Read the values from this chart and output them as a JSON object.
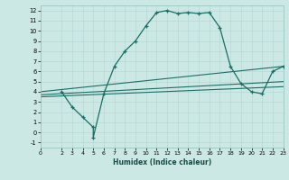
{
  "xlabel": "Humidex (Indice chaleur)",
  "ylabel": "",
  "xlim": [
    0,
    23
  ],
  "ylim": [
    -1.5,
    12.5
  ],
  "xticks": [
    0,
    2,
    3,
    4,
    5,
    6,
    7,
    8,
    9,
    10,
    11,
    12,
    13,
    14,
    15,
    16,
    17,
    18,
    19,
    20,
    21,
    22,
    23
  ],
  "yticks": [
    -1,
    0,
    1,
    2,
    3,
    4,
    5,
    6,
    7,
    8,
    9,
    10,
    11,
    12
  ],
  "bg_color": "#cce8e5",
  "line_color": "#1a6e65",
  "curve1_x": [
    2,
    3,
    4,
    5,
    5,
    6,
    7,
    8,
    9,
    10,
    11,
    12,
    13,
    14,
    15,
    16,
    17,
    18,
    19,
    20,
    21,
    22,
    23
  ],
  "curve1_y": [
    4,
    2.5,
    1.5,
    0.5,
    -0.5,
    3.8,
    6.5,
    8.0,
    9.0,
    10.5,
    11.8,
    12.0,
    11.7,
    11.8,
    11.7,
    11.8,
    10.3,
    6.5,
    4.8,
    4.0,
    3.8,
    6.0,
    6.5
  ],
  "line1_x": [
    0,
    23
  ],
  "line1_y": [
    4.0,
    6.5
  ],
  "line2_x": [
    0,
    23
  ],
  "line2_y": [
    3.7,
    5.0
  ],
  "line3_x": [
    0,
    23
  ],
  "line3_y": [
    3.5,
    4.5
  ]
}
